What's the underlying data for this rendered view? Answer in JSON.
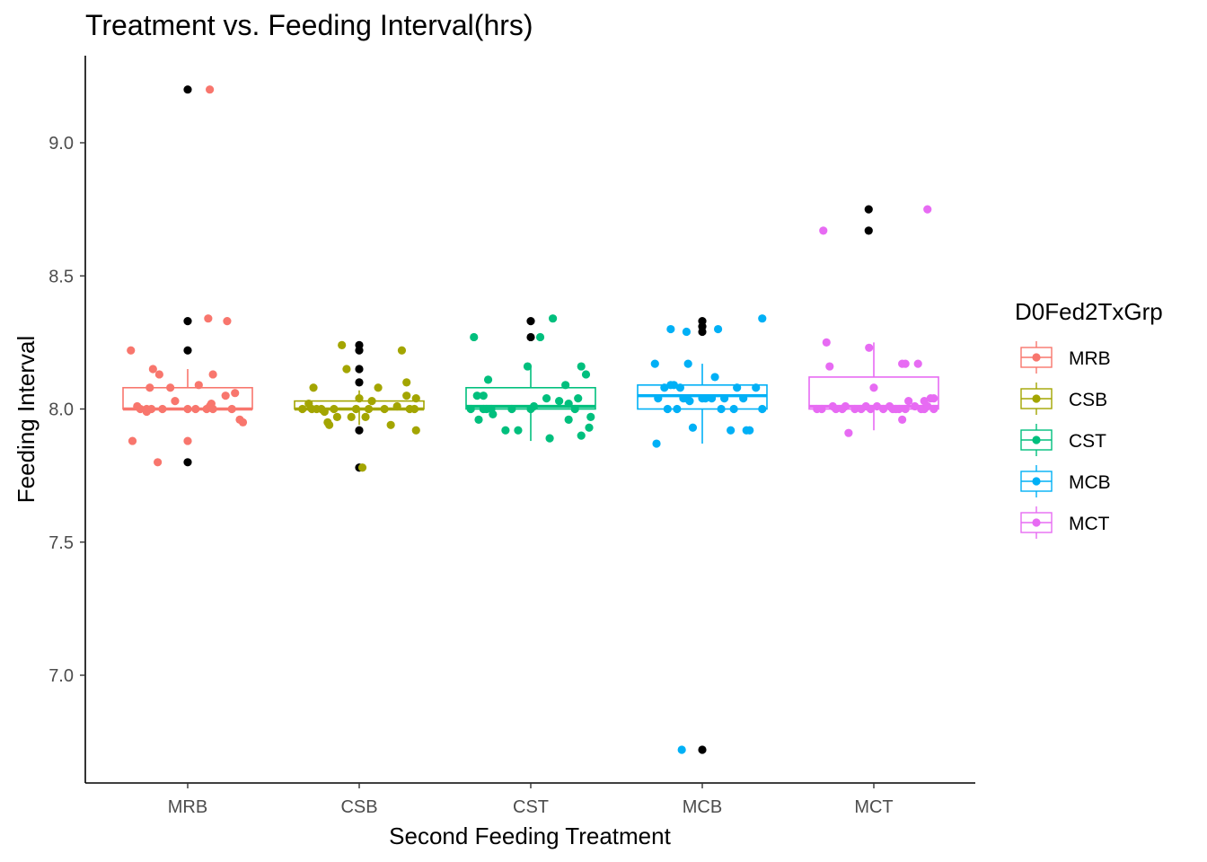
{
  "chart_data": {
    "type": "boxplot",
    "title": "Treatment vs. Feeding Interval(hrs)",
    "xlabel": "Second Feeding Treatment",
    "ylabel": "Feeding Interval",
    "categories": [
      "MRB",
      "CSB",
      "CST",
      "MCB",
      "MCT"
    ],
    "ylim": [
      6.6,
      9.4
    ],
    "yticks": [
      "7.0",
      "7.5",
      "8.0",
      "8.5",
      "9.0"
    ],
    "legend": {
      "title": "D0Fed2TxGrp",
      "placement": "right",
      "entries": [
        "MRB",
        "CSB",
        "CST",
        "MCB",
        "MCT"
      ]
    },
    "colors": {
      "MRB": "#F8766D",
      "CSB": "#A3A500",
      "CST": "#00BF7D",
      "MCB": "#00B0F6",
      "MCT": "#E76BF3",
      "outlier": "#000000"
    },
    "grid": false,
    "series": [
      {
        "name": "MRB",
        "box": {
          "lower_whisker": 8.0,
          "q1": 8.0,
          "median": 8.0,
          "q3": 8.08,
          "upper_whisker": 8.15
        },
        "outliers": [
          9.2,
          8.33,
          8.22,
          7.8
        ],
        "points": [
          [
            -0.36,
            8.22
          ],
          [
            -0.35,
            7.88
          ],
          [
            -0.32,
            8.01
          ],
          [
            -0.3,
            8.0
          ],
          [
            -0.26,
            8.0
          ],
          [
            -0.26,
            7.99
          ],
          [
            -0.24,
            8.08
          ],
          [
            -0.23,
            8.0
          ],
          [
            -0.22,
            8.15
          ],
          [
            -0.19,
            7.8
          ],
          [
            -0.18,
            8.13
          ],
          [
            -0.16,
            8.0
          ],
          [
            -0.11,
            8.08
          ],
          [
            -0.08,
            8.03
          ],
          [
            0.0,
            7.88
          ],
          [
            0.0,
            8.0
          ],
          [
            0.07,
            8.09
          ],
          [
            0.12,
            8.0
          ],
          [
            0.13,
            8.34
          ],
          [
            0.14,
            8.01
          ],
          [
            0.16,
            8.0
          ],
          [
            0.16,
            8.13
          ],
          [
            0.24,
            8.05
          ],
          [
            0.25,
            8.33
          ],
          [
            0.28,
            8.0
          ],
          [
            0.3,
            8.06
          ],
          [
            0.33,
            7.96
          ],
          [
            0.35,
            7.95
          ],
          [
            0.15,
            8.02
          ],
          [
            0.05,
            8.0
          ],
          [
            0.14,
            9.2
          ]
        ]
      },
      {
        "name": "CSB",
        "box": {
          "lower_whisker": 7.94,
          "q1": 8.0,
          "median": 8.0,
          "q3": 8.03,
          "upper_whisker": 8.07
        },
        "outliers": [
          8.24,
          8.22,
          8.15,
          8.1,
          7.92,
          7.78
        ],
        "points": [
          [
            -0.36,
            8.0
          ],
          [
            -0.32,
            8.02
          ],
          [
            -0.3,
            8.0
          ],
          [
            -0.29,
            8.08
          ],
          [
            -0.27,
            8.0
          ],
          [
            -0.24,
            8.0
          ],
          [
            -0.22,
            7.99
          ],
          [
            -0.2,
            7.95
          ],
          [
            -0.19,
            7.94
          ],
          [
            -0.16,
            8.0
          ],
          [
            -0.14,
            7.97
          ],
          [
            -0.11,
            8.24
          ],
          [
            -0.08,
            8.15
          ],
          [
            -0.05,
            7.97
          ],
          [
            -0.02,
            8.0
          ],
          [
            0.0,
            8.04
          ],
          [
            0.02,
            7.78
          ],
          [
            0.04,
            7.97
          ],
          [
            0.06,
            8.0
          ],
          [
            0.08,
            8.03
          ],
          [
            0.12,
            8.08
          ],
          [
            0.16,
            8.0
          ],
          [
            0.2,
            7.94
          ],
          [
            0.24,
            8.01
          ],
          [
            0.27,
            8.22
          ],
          [
            0.3,
            8.1
          ],
          [
            0.3,
            8.05
          ],
          [
            0.32,
            8.0
          ],
          [
            0.35,
            8.0
          ],
          [
            0.36,
            8.04
          ],
          [
            0.36,
            7.92
          ]
        ]
      },
      {
        "name": "CST",
        "box": {
          "lower_whisker": 7.88,
          "q1": 8.0,
          "median": 8.01,
          "q3": 8.08,
          "upper_whisker": 8.16
        },
        "outliers": [
          8.33,
          8.27
        ],
        "points": [
          [
            -0.38,
            8.0
          ],
          [
            -0.36,
            8.27
          ],
          [
            -0.34,
            8.05
          ],
          [
            -0.33,
            7.96
          ],
          [
            -0.3,
            8.0
          ],
          [
            -0.28,
            8.0
          ],
          [
            -0.27,
            8.11
          ],
          [
            -0.25,
            8.0
          ],
          [
            -0.24,
            7.98
          ],
          [
            -0.16,
            7.92
          ],
          [
            -0.12,
            8.0
          ],
          [
            -0.08,
            7.92
          ],
          [
            -0.02,
            8.16
          ],
          [
            0.0,
            8.0
          ],
          [
            0.02,
            8.01
          ],
          [
            0.06,
            8.27
          ],
          [
            0.1,
            8.04
          ],
          [
            0.12,
            7.89
          ],
          [
            0.18,
            8.03
          ],
          [
            0.22,
            8.09
          ],
          [
            0.24,
            8.02
          ],
          [
            0.24,
            7.96
          ],
          [
            0.28,
            8.0
          ],
          [
            0.3,
            8.04
          ],
          [
            0.32,
            8.16
          ],
          [
            0.32,
            7.9
          ],
          [
            0.35,
            8.13
          ],
          [
            0.37,
            7.93
          ],
          [
            0.38,
            7.97
          ],
          [
            0.14,
            8.34
          ],
          [
            -0.3,
            8.05
          ]
        ]
      },
      {
        "name": "MCB",
        "box": {
          "lower_whisker": 7.87,
          "q1": 8.0,
          "median": 8.05,
          "q3": 8.09,
          "upper_whisker": 8.17
        },
        "outliers": [
          8.33,
          8.31,
          8.29,
          6.72
        ],
        "points": [
          [
            -0.3,
            8.17
          ],
          [
            -0.28,
            8.04
          ],
          [
            -0.29,
            7.87
          ],
          [
            -0.24,
            8.08
          ],
          [
            -0.22,
            8.0
          ],
          [
            -0.2,
            8.3
          ],
          [
            -0.2,
            8.09
          ],
          [
            -0.18,
            8.09
          ],
          [
            -0.16,
            8.0
          ],
          [
            -0.14,
            8.08
          ],
          [
            -0.12,
            8.04
          ],
          [
            -0.1,
            8.04
          ],
          [
            -0.1,
            8.29
          ],
          [
            -0.09,
            8.17
          ],
          [
            -0.08,
            8.03
          ],
          [
            -0.06,
            7.93
          ],
          [
            0.0,
            8.04
          ],
          [
            0.02,
            8.04
          ],
          [
            0.06,
            8.04
          ],
          [
            0.08,
            8.12
          ],
          [
            0.12,
            8.0
          ],
          [
            0.14,
            8.04
          ],
          [
            0.18,
            7.92
          ],
          [
            0.2,
            8.0
          ],
          [
            0.22,
            8.08
          ],
          [
            0.26,
            8.04
          ],
          [
            0.28,
            7.92
          ],
          [
            0.3,
            7.92
          ],
          [
            0.34,
            8.08
          ],
          [
            0.38,
            8.34
          ],
          [
            0.38,
            8.0
          ],
          [
            -0.13,
            6.72
          ],
          [
            0.1,
            8.3
          ]
        ]
      },
      {
        "name": "MCT",
        "box": {
          "lower_whisker": 7.92,
          "q1": 8.0,
          "median": 8.01,
          "q3": 8.12,
          "upper_whisker": 8.25
        },
        "outliers": [
          8.75,
          8.67
        ],
        "points": [
          [
            -0.36,
            8.0
          ],
          [
            -0.33,
            8.0
          ],
          [
            -0.32,
            8.67
          ],
          [
            -0.3,
            8.25
          ],
          [
            -0.28,
            8.16
          ],
          [
            -0.26,
            8.01
          ],
          [
            -0.24,
            8.0
          ],
          [
            -0.2,
            8.0
          ],
          [
            -0.18,
            8.01
          ],
          [
            -0.16,
            7.91
          ],
          [
            -0.12,
            8.0
          ],
          [
            -0.08,
            8.0
          ],
          [
            -0.05,
            8.01
          ],
          [
            -0.03,
            8.23
          ],
          [
            -0.02,
            8.0
          ],
          [
            0.0,
            8.08
          ],
          [
            0.02,
            8.01
          ],
          [
            0.06,
            8.0
          ],
          [
            0.1,
            8.01
          ],
          [
            0.12,
            8.0
          ],
          [
            0.14,
            8.0
          ],
          [
            0.16,
            8.0
          ],
          [
            0.18,
            7.96
          ],
          [
            0.18,
            8.17
          ],
          [
            0.2,
            8.17
          ],
          [
            0.2,
            8.0
          ],
          [
            0.22,
            8.03
          ],
          [
            0.26,
            8.01
          ],
          [
            0.28,
            8.17
          ],
          [
            0.3,
            8.0
          ],
          [
            0.32,
            8.0
          ],
          [
            0.32,
            8.03
          ],
          [
            0.34,
            8.01
          ],
          [
            0.36,
            8.04
          ],
          [
            0.38,
            8.04
          ],
          [
            0.38,
            8.0
          ],
          [
            0.34,
            8.75
          ]
        ]
      }
    ],
    "outlier_offsets": {
      "MRB": [
        0.0,
        0.0,
        0.0,
        0.0
      ],
      "CSB": [
        0.0,
        0.0,
        0.0,
        0.0,
        0.0,
        0.0
      ],
      "CST": [
        0.0,
        0.0
      ],
      "MCB": [
        0.0,
        0.0,
        0.0,
        0.0
      ],
      "MCT": [
        -0.03,
        -0.03
      ]
    }
  }
}
